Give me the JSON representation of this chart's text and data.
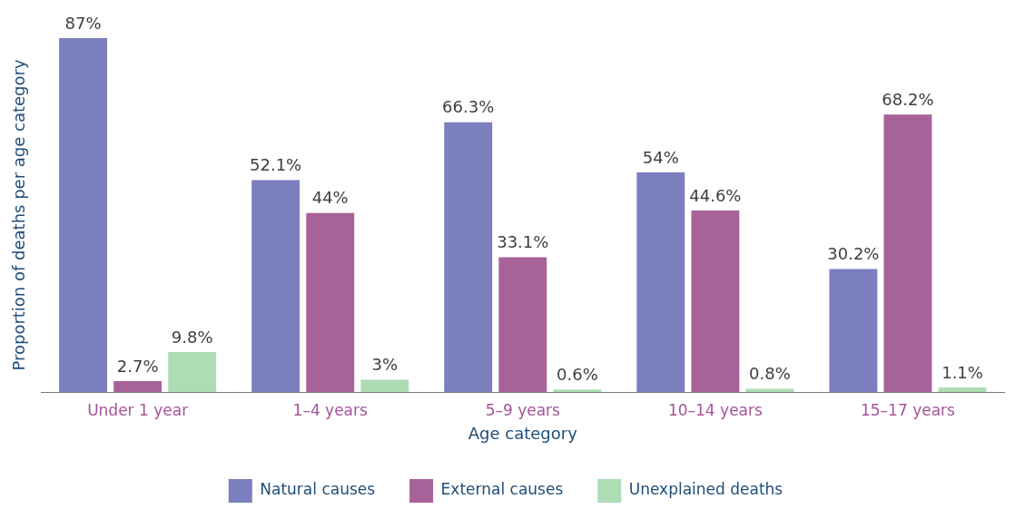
{
  "chart_data": {
    "type": "bar",
    "xlabel": "Age category",
    "ylabel": "Proportion of deaths per age category",
    "categories": [
      "Under 1 year",
      "1–4 years",
      "5–9 years",
      "10–14 years",
      "15–17 years"
    ],
    "series": [
      {
        "name": "Natural causes",
        "color": "#7b7fbd",
        "values": [
          87,
          52.1,
          66.3,
          54,
          30.2
        ],
        "value_labels": [
          "87%",
          "52.1%",
          "66.3%",
          "54%",
          "30.2%"
        ]
      },
      {
        "name": "External causes",
        "color": "#a76298",
        "values": [
          2.7,
          44,
          33.1,
          44.6,
          68.2
        ],
        "value_labels": [
          "2.7%",
          "44%",
          "33.1%",
          "44.6%",
          "68.2%"
        ]
      },
      {
        "name": "Unexplained deaths",
        "color": "#addcb5",
        "values": [
          9.8,
          3,
          0.6,
          0.8,
          1.1
        ],
        "value_labels": [
          "9.8%",
          "3%",
          "0.6%",
          "0.8%",
          "1.1%"
        ]
      }
    ],
    "legend": "bottom",
    "grid": false,
    "tick_labels": "x"
  }
}
